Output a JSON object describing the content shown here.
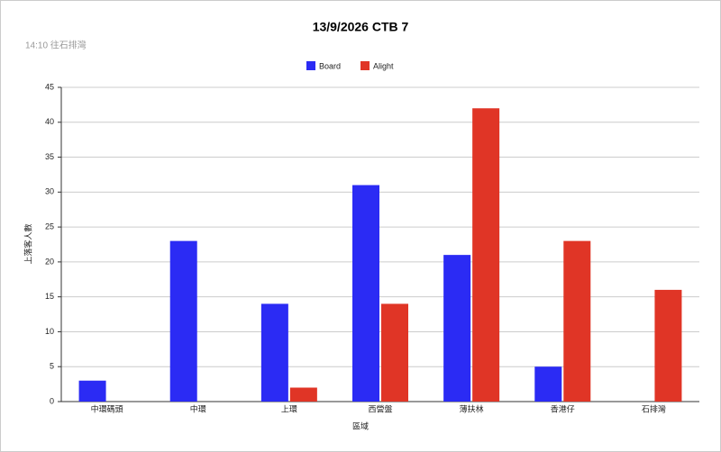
{
  "chart_data": {
    "type": "bar",
    "title": "13/9/2026 CTB 7",
    "subtitle": "14:10 往石排灣",
    "x_label": "區域",
    "y_label": "上落客人數",
    "categories": [
      "中環碼頭",
      "中環",
      "上環",
      "西營盤",
      "薄扶林",
      "香港仔",
      "石排灣"
    ],
    "series": [
      {
        "name": "Board",
        "color": "#2b2bf4",
        "values": [
          3,
          23,
          14,
          31,
          21,
          5,
          0
        ]
      },
      {
        "name": "Alight",
        "color": "#e03526",
        "values": [
          0,
          0,
          2,
          14,
          42,
          23,
          16
        ]
      }
    ],
    "ylim": [
      0,
      45
    ],
    "yticks": [
      0,
      5,
      10,
      15,
      20,
      25,
      30,
      35,
      40,
      45
    ],
    "grid": true,
    "legend": "top"
  }
}
